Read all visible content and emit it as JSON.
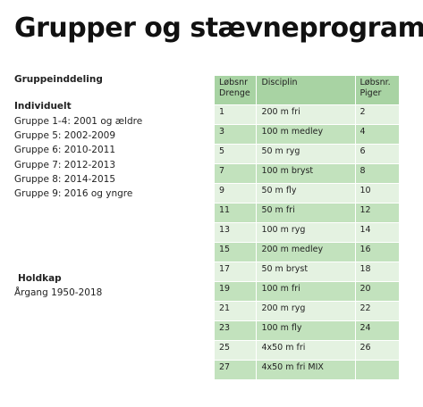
{
  "header": {
    "title": "Grupper og stævneprogram"
  },
  "groups": {
    "heading": "Gruppeinddeling",
    "individual": {
      "heading": "Individuelt",
      "items": [
        "Gruppe 1-4: 2001 og ældre",
        "Gruppe 5: 2002-2009",
        "Gruppe 6: 2010-2011",
        "Gruppe 7: 2012-2013",
        "Gruppe 8: 2014-2015",
        "Gruppe 9: 2016 og yngre"
      ]
    },
    "relay": {
      "heading": "Holdkap",
      "text": "Årgang 1950-2018"
    }
  },
  "table": {
    "columns": [
      "Løbsnr Drenge",
      "Disciplin",
      "Løbsnr. Piger"
    ],
    "rows": [
      [
        1,
        "200 m fri",
        2
      ],
      [
        3,
        "100 m medley",
        4
      ],
      [
        5,
        "50 m ryg",
        6
      ],
      [
        7,
        "100 m bryst",
        8
      ],
      [
        9,
        "50 m fly",
        10
      ],
      [
        11,
        "50 m fri",
        12
      ],
      [
        13,
        "100 m ryg",
        14
      ],
      [
        15,
        "200 m medley",
        16
      ],
      [
        17,
        "50 m bryst",
        18
      ],
      [
        19,
        "100 m fri",
        20
      ],
      [
        21,
        "200 m ryg",
        22
      ],
      [
        23,
        "100 m fly",
        24
      ],
      [
        25,
        "4x50 m fri",
        26
      ],
      [
        27,
        "4x50 m fri MIX",
        null
      ]
    ]
  }
}
